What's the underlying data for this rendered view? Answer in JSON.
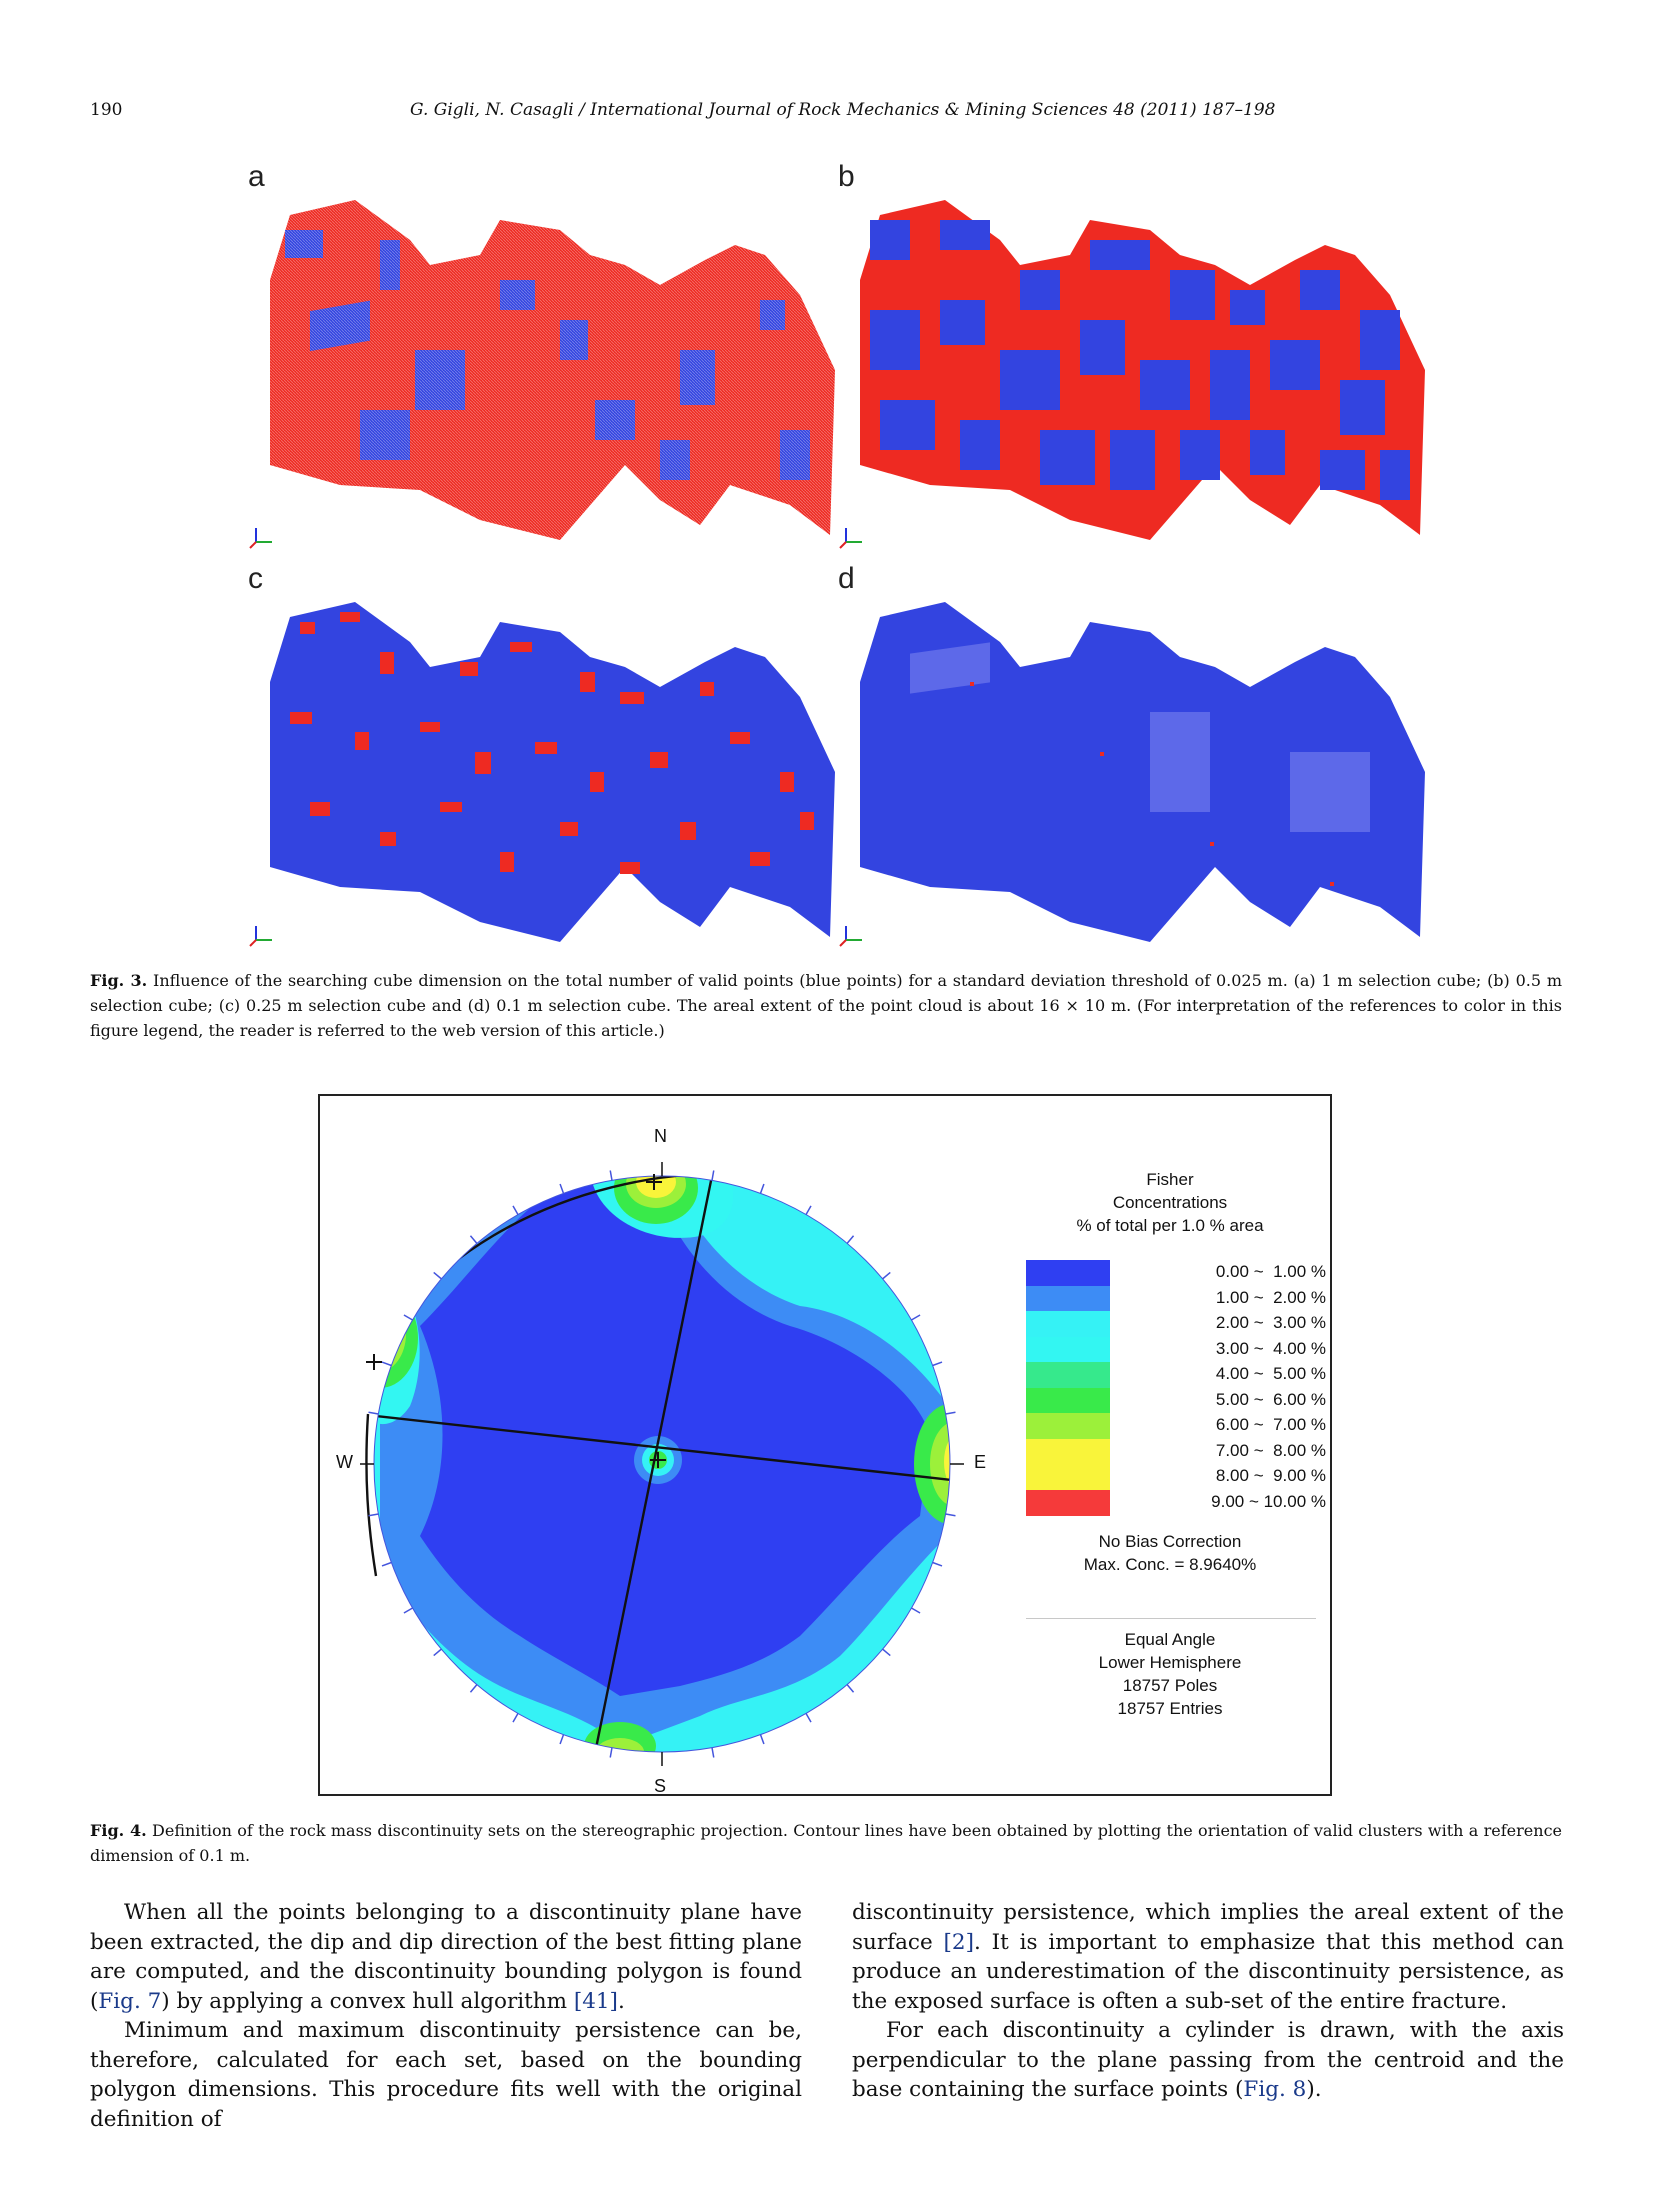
{
  "header": {
    "page_number": "190",
    "running_head": "G. Gigli, N. Casagli / International Journal of Rock Mechanics & Mining Sciences 48 (2011) 187–198"
  },
  "fig3": {
    "panels": [
      {
        "letter": "a"
      },
      {
        "letter": "b"
      },
      {
        "letter": "c"
      },
      {
        "letter": "d"
      }
    ],
    "caption_label": "Fig. 3.",
    "caption_text": "Influence of the searching cube dimension on the total number of valid points (blue points) for a standard deviation threshold of 0.025 m. (a) 1 m selection cube; (b) 0.5 m selection cube; (c) 0.25 m selection cube and (d) 0.1 m selection cube. The areal extent of the point cloud is about 16 × 10 m. (For interpretation of the references to color in this figure legend, the reader is referred to the web version of this article.)",
    "colors": {
      "valid": "#3344e0",
      "invalid": "#ee2a22"
    }
  },
  "fig4": {
    "compass": {
      "n": "N",
      "s": "S",
      "e": "E",
      "w": "W"
    },
    "legend_title": [
      "Fisher",
      "Concentrations",
      "% of total per 1.0 % area"
    ],
    "legend": [
      {
        "label": " 0.00 ~  1.00 %",
        "color": "#2f3ff2"
      },
      {
        "label": " 1.00 ~  2.00 %",
        "color": "#3d8cf5"
      },
      {
        "label": " 2.00 ~  3.00 %",
        "color": "#35f2f5"
      },
      {
        "label": " 3.00 ~  4.00 %",
        "color": "#33f6f2"
      },
      {
        "label": " 4.00 ~  5.00 %",
        "color": "#36e98c"
      },
      {
        "label": " 5.00 ~  6.00 %",
        "color": "#39ea4a"
      },
      {
        "label": " 6.00 ~  7.00 %",
        "color": "#9cf03a"
      },
      {
        "label": " 7.00 ~  8.00 %",
        "color": "#f9f43a"
      },
      {
        "label": " 8.00 ~  9.00 %",
        "color": "#f9f43a"
      },
      {
        "label": " 9.00 ~ 10.00 %",
        "color": "#f53a3a"
      }
    ],
    "bias": [
      "No Bias Correction",
      "Max. Conc. = 8.9640%"
    ],
    "projection": [
      "Equal Angle",
      "Lower Hemisphere",
      "18757 Poles",
      "18757 Entries"
    ],
    "caption_label": "Fig. 4.",
    "caption_text": "Definition of the rock mass discontinuity sets on the stereographic projection. Contour lines have been obtained by plotting the orientation of valid clusters with a reference dimension of 0.1 m."
  },
  "body": {
    "left": [
      {
        "indent": true,
        "parts": [
          {
            "t": "When all the points belonging to a discontinuity plane have been extracted, the dip and dip direction of the best fitting plane are computed, and the discontinuity bounding polygon is found ("
          },
          {
            "t": "Fig. 7",
            "ref": true
          },
          {
            "t": ") by applying a convex hull algorithm "
          },
          {
            "t": "[41]",
            "ref": true
          },
          {
            "t": "."
          }
        ]
      },
      {
        "indent": true,
        "parts": [
          {
            "t": "Minimum and maximum discontinuity persistence can be, therefore, calculated for each set, based on the bounding polygon dimensions. This procedure fits well with the original definition of"
          }
        ]
      }
    ],
    "right": [
      {
        "indent": false,
        "parts": [
          {
            "t": "discontinuity persistence, which implies the areal extent of the surface "
          },
          {
            "t": "[2]",
            "ref": true
          },
          {
            "t": ". It is important to emphasize that this method can produce an underestimation of the discontinuity persistence, as the exposed surface is often a sub-set of the entire fracture."
          }
        ]
      },
      {
        "indent": true,
        "parts": [
          {
            "t": "For each discontinuity a cylinder is drawn, with the axis perpendicular to the plane passing from the centroid and the base containing the surface points ("
          },
          {
            "t": "Fig. 8",
            "ref": true
          },
          {
            "t": ")."
          }
        ]
      }
    ]
  }
}
